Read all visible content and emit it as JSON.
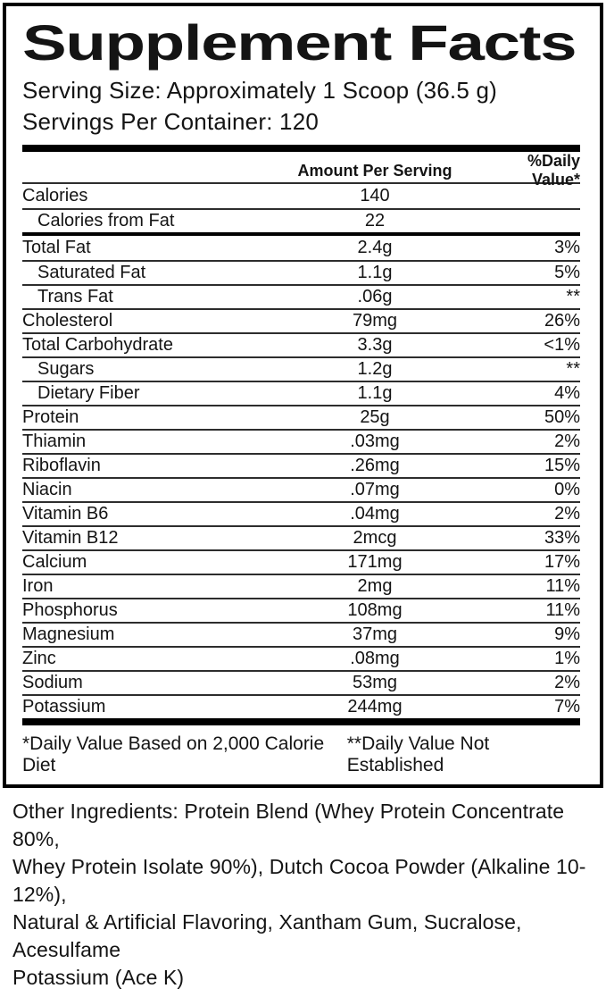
{
  "header": {
    "title": "Supplement Facts",
    "serving_size": "Serving Size: Approximately 1 Scoop (36.5 g)",
    "servings_per_container": "Servings Per Container: 120"
  },
  "table": {
    "columns": {
      "amount": "Amount Per Serving",
      "daily_value": "%Daily Value*"
    },
    "calorie_rows": [
      {
        "name": "Calories",
        "amount": "140",
        "dv": "",
        "indent": false
      },
      {
        "name": "Calories from Fat",
        "amount": "22",
        "dv": "",
        "indent": true
      }
    ],
    "rows": [
      {
        "name": "Total Fat",
        "amount": "2.4g",
        "dv": "3%",
        "indent": false
      },
      {
        "name": "Saturated Fat",
        "amount": "1.1g",
        "dv": "5%",
        "indent": true
      },
      {
        "name": "Trans Fat",
        "amount": ".06g",
        "dv": "**",
        "indent": true
      },
      {
        "name": "Cholesterol",
        "amount": "79mg",
        "dv": "26%",
        "indent": false
      },
      {
        "name": "Total Carbohydrate",
        "amount": "3.3g",
        "dv": "<1%",
        "indent": false
      },
      {
        "name": "Sugars",
        "amount": "1.2g",
        "dv": "**",
        "indent": true
      },
      {
        "name": "Dietary Fiber",
        "amount": "1.1g",
        "dv": "4%",
        "indent": true
      },
      {
        "name": "Protein",
        "amount": "25g",
        "dv": "50%",
        "indent": false
      },
      {
        "name": "Thiamin",
        "amount": ".03mg",
        "dv": "2%",
        "indent": false
      },
      {
        "name": "Riboflavin",
        "amount": ".26mg",
        "dv": "15%",
        "indent": false
      },
      {
        "name": "Niacin",
        "amount": ".07mg",
        "dv": "0%",
        "indent": false
      },
      {
        "name": "Vitamin B6",
        "amount": ".04mg",
        "dv": "2%",
        "indent": false
      },
      {
        "name": "Vitamin B12",
        "amount": "2mcg",
        "dv": "33%",
        "indent": false
      },
      {
        "name": "Calcium",
        "amount": "171mg",
        "dv": "17%",
        "indent": false
      },
      {
        "name": "Iron",
        "amount": "2mg",
        "dv": "11%",
        "indent": false
      },
      {
        "name": "Phosphorus",
        "amount": "108mg",
        "dv": "11%",
        "indent": false
      },
      {
        "name": "Magnesium",
        "amount": "37mg",
        "dv": "9%",
        "indent": false
      },
      {
        "name": "Zinc",
        "amount": ".08mg",
        "dv": "1%",
        "indent": false
      },
      {
        "name": "Sodium",
        "amount": "53mg",
        "dv": "2%",
        "indent": false
      },
      {
        "name": "Potassium",
        "amount": "244mg",
        "dv": "7%",
        "indent": false
      }
    ]
  },
  "footnotes": {
    "left": "*Daily Value Based on 2,000 Calorie Diet",
    "right": "**Daily Value Not Established"
  },
  "other_ingredients_lines": [
    "Other Ingredients: Protein Blend (Whey Protein Concentrate 80%,",
    "Whey Protein Isolate 90%), Dutch Cocoa Powder (Alkaline 10-12%),",
    "Natural & Artificial Flavoring, Xantham Gum, Sucralose, Acesulfame",
    "Potassium (Ace K)"
  ],
  "colors": {
    "text": "#141414",
    "rule": "#2d2d2d",
    "bar": "#000000",
    "background": "#ffffff"
  }
}
